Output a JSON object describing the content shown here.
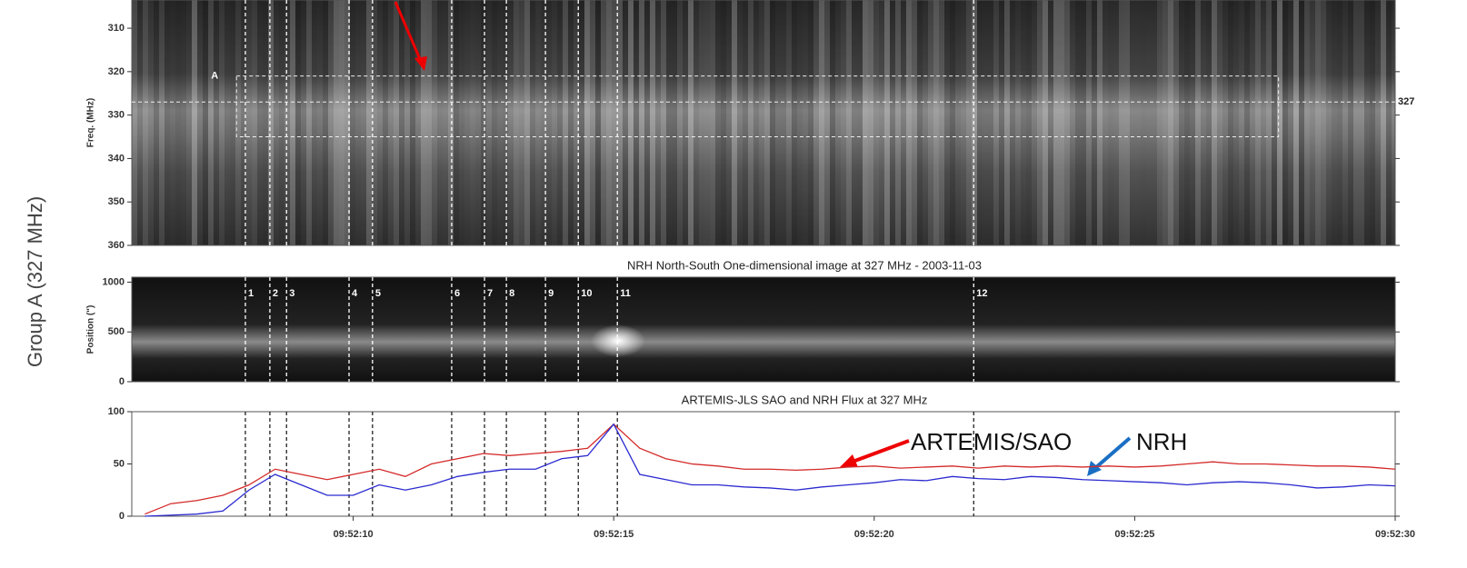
{
  "chart_data": [
    {
      "type": "heatmap",
      "ylabel": "Freq. (MHz)",
      "ylim": [
        303.5,
        360
      ],
      "yticks": [
        310,
        320,
        330,
        340,
        350,
        360
      ],
      "xlim": [
        5.75,
        30
      ],
      "marker": "A",
      "marker_freq": {
        "value": 327,
        "label": "327"
      },
      "box": {
        "x": [
          7.76,
          27.76
        ],
        "y": [
          321,
          335
        ]
      }
    },
    {
      "type": "heatmap",
      "title": "NRH  North-South  One-dimensional  image   at  327 MHz  -  2003-11-03",
      "ylabel": "Position (\")",
      "ylim": [
        0,
        1050
      ],
      "yticks": [
        0,
        500,
        1000
      ],
      "xlim": [
        5.75,
        30
      ],
      "events": {
        "x": [
          7.93,
          8.4,
          8.72,
          9.92,
          10.37,
          11.89,
          12.52,
          12.94,
          13.69,
          14.32,
          15.07,
          21.91
        ],
        "labels": [
          "1",
          "2",
          "3",
          "4",
          "5",
          "6",
          "7",
          "8",
          "9",
          "10",
          "11",
          "12"
        ]
      }
    },
    {
      "type": "line",
      "title": "ARTEMIS-JLS SAO  and  NRH  Flux  at  327 MHz",
      "ylim": [
        0,
        100
      ],
      "yticks": [
        0,
        50,
        100
      ],
      "xlim": [
        5.75,
        30
      ],
      "xticks": [
        {
          "value": 10,
          "label": "09:52:10"
        },
        {
          "value": 15,
          "label": "09:52:15"
        },
        {
          "value": 20,
          "label": "09:52:20"
        },
        {
          "value": 25,
          "label": "09:52:25"
        },
        {
          "value": 30,
          "label": "09:52:30"
        }
      ],
      "x": [
        6,
        6.5,
        7,
        7.5,
        8,
        8.5,
        9,
        9.5,
        10,
        10.5,
        11,
        11.5,
        12,
        12.5,
        13,
        13.5,
        14,
        14.5,
        15,
        15.5,
        16,
        16.5,
        17,
        17.5,
        18,
        18.5,
        19,
        19.5,
        20,
        20.5,
        21,
        21.5,
        22,
        22.5,
        23,
        23.5,
        24,
        24.5,
        25,
        25.5,
        26,
        26.5,
        27,
        27.5,
        28,
        28.5,
        29,
        29.5,
        30
      ],
      "series": [
        {
          "name": "ARTEMIS/SAO",
          "color": "#d42a2a",
          "values": [
            2,
            12,
            15,
            20,
            30,
            45,
            40,
            35,
            40,
            45,
            38,
            50,
            55,
            60,
            58,
            60,
            62,
            65,
            88,
            65,
            55,
            50,
            48,
            45,
            45,
            44,
            45,
            47,
            48,
            46,
            47,
            48,
            46,
            48,
            47,
            48,
            47,
            48,
            47,
            48,
            50,
            52,
            50,
            50,
            49,
            48,
            48,
            47,
            45
          ]
        },
        {
          "name": "NRH",
          "color": "#2a2ad0",
          "values": [
            0,
            1,
            2,
            5,
            25,
            40,
            30,
            20,
            20,
            30,
            25,
            30,
            38,
            42,
            45,
            45,
            55,
            58,
            88,
            40,
            35,
            30,
            30,
            28,
            27,
            25,
            28,
            30,
            32,
            35,
            34,
            38,
            36,
            35,
            38,
            37,
            35,
            34,
            33,
            32,
            30,
            32,
            33,
            32,
            30,
            27,
            28,
            30,
            29
          ]
        }
      ]
    },
    {
      "type": "label",
      "text": "Group A (327 MHz)"
    }
  ]
}
